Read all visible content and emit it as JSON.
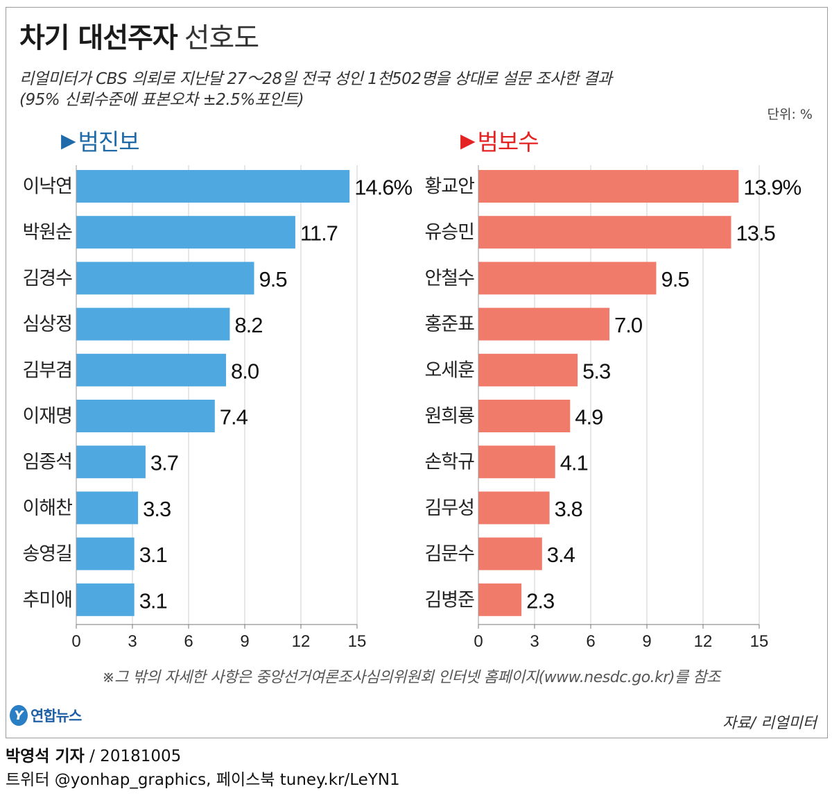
{
  "title": {
    "main": "차기 대선주자",
    "sub": "선호도"
  },
  "subtitle": {
    "line1": "리얼미터가 CBS 의뢰로 지난달 27～28일 전국 성인 1천502명을 상대로 설문 조사한 결과",
    "line2": "(95% 신뢰수준에 표본오차 ±2.5%포인트)"
  },
  "unit": "단위: %",
  "colors": {
    "progressive": "#4fa8e0",
    "conservative": "#f07b6b",
    "progressive_head": "#1f6aa8",
    "conservative_head": "#e52222"
  },
  "chart_data": [
    {
      "type": "bar",
      "orientation": "horizontal",
      "title": "범진보",
      "categories": [
        "이낙연",
        "박원순",
        "김경수",
        "심상정",
        "김부겸",
        "이재명",
        "임종석",
        "이해찬",
        "송영길",
        "추미애"
      ],
      "values": [
        14.6,
        11.7,
        9.5,
        8.2,
        8.0,
        7.4,
        3.7,
        3.3,
        3.1,
        3.1
      ],
      "value_labels": [
        "14.6%",
        "11.7",
        "9.5",
        "8.2",
        "8.0",
        "7.4",
        "3.7",
        "3.3",
        "3.1",
        "3.1"
      ],
      "xticks": [
        "0",
        "3",
        "6",
        "9",
        "12",
        "15"
      ],
      "xlim": [
        0,
        15
      ],
      "grid": true
    },
    {
      "type": "bar",
      "orientation": "horizontal",
      "title": "범보수",
      "categories": [
        "황교안",
        "유승민",
        "안철수",
        "홍준표",
        "오세훈",
        "원희룡",
        "손학규",
        "김무성",
        "김문수",
        "김병준"
      ],
      "values": [
        13.9,
        13.5,
        9.5,
        7.0,
        5.3,
        4.9,
        4.1,
        3.8,
        3.4,
        2.3
      ],
      "value_labels": [
        "13.9%",
        "13.5",
        "9.5",
        "7.0",
        "5.3",
        "4.9",
        "4.1",
        "3.8",
        "3.4",
        "2.3"
      ],
      "xticks": [
        "0",
        "3",
        "6",
        "9",
        "12",
        "15"
      ],
      "xlim": [
        0,
        15
      ],
      "grid": true
    }
  ],
  "note": "※그 밖의 자세한 사항은 중앙선거여론조사심의위원회 인터넷 홈페이지(www.nesdc.go.kr)를 참조",
  "logo": {
    "mark": "Y",
    "text": "연합뉴스"
  },
  "source": "자료/ 리얼미터",
  "credit": {
    "reporter": "박영석 기자",
    "date": " / 20181005",
    "social": "트위터 @yonhap_graphics, 페이스북 tuney.kr/LeYN1"
  }
}
